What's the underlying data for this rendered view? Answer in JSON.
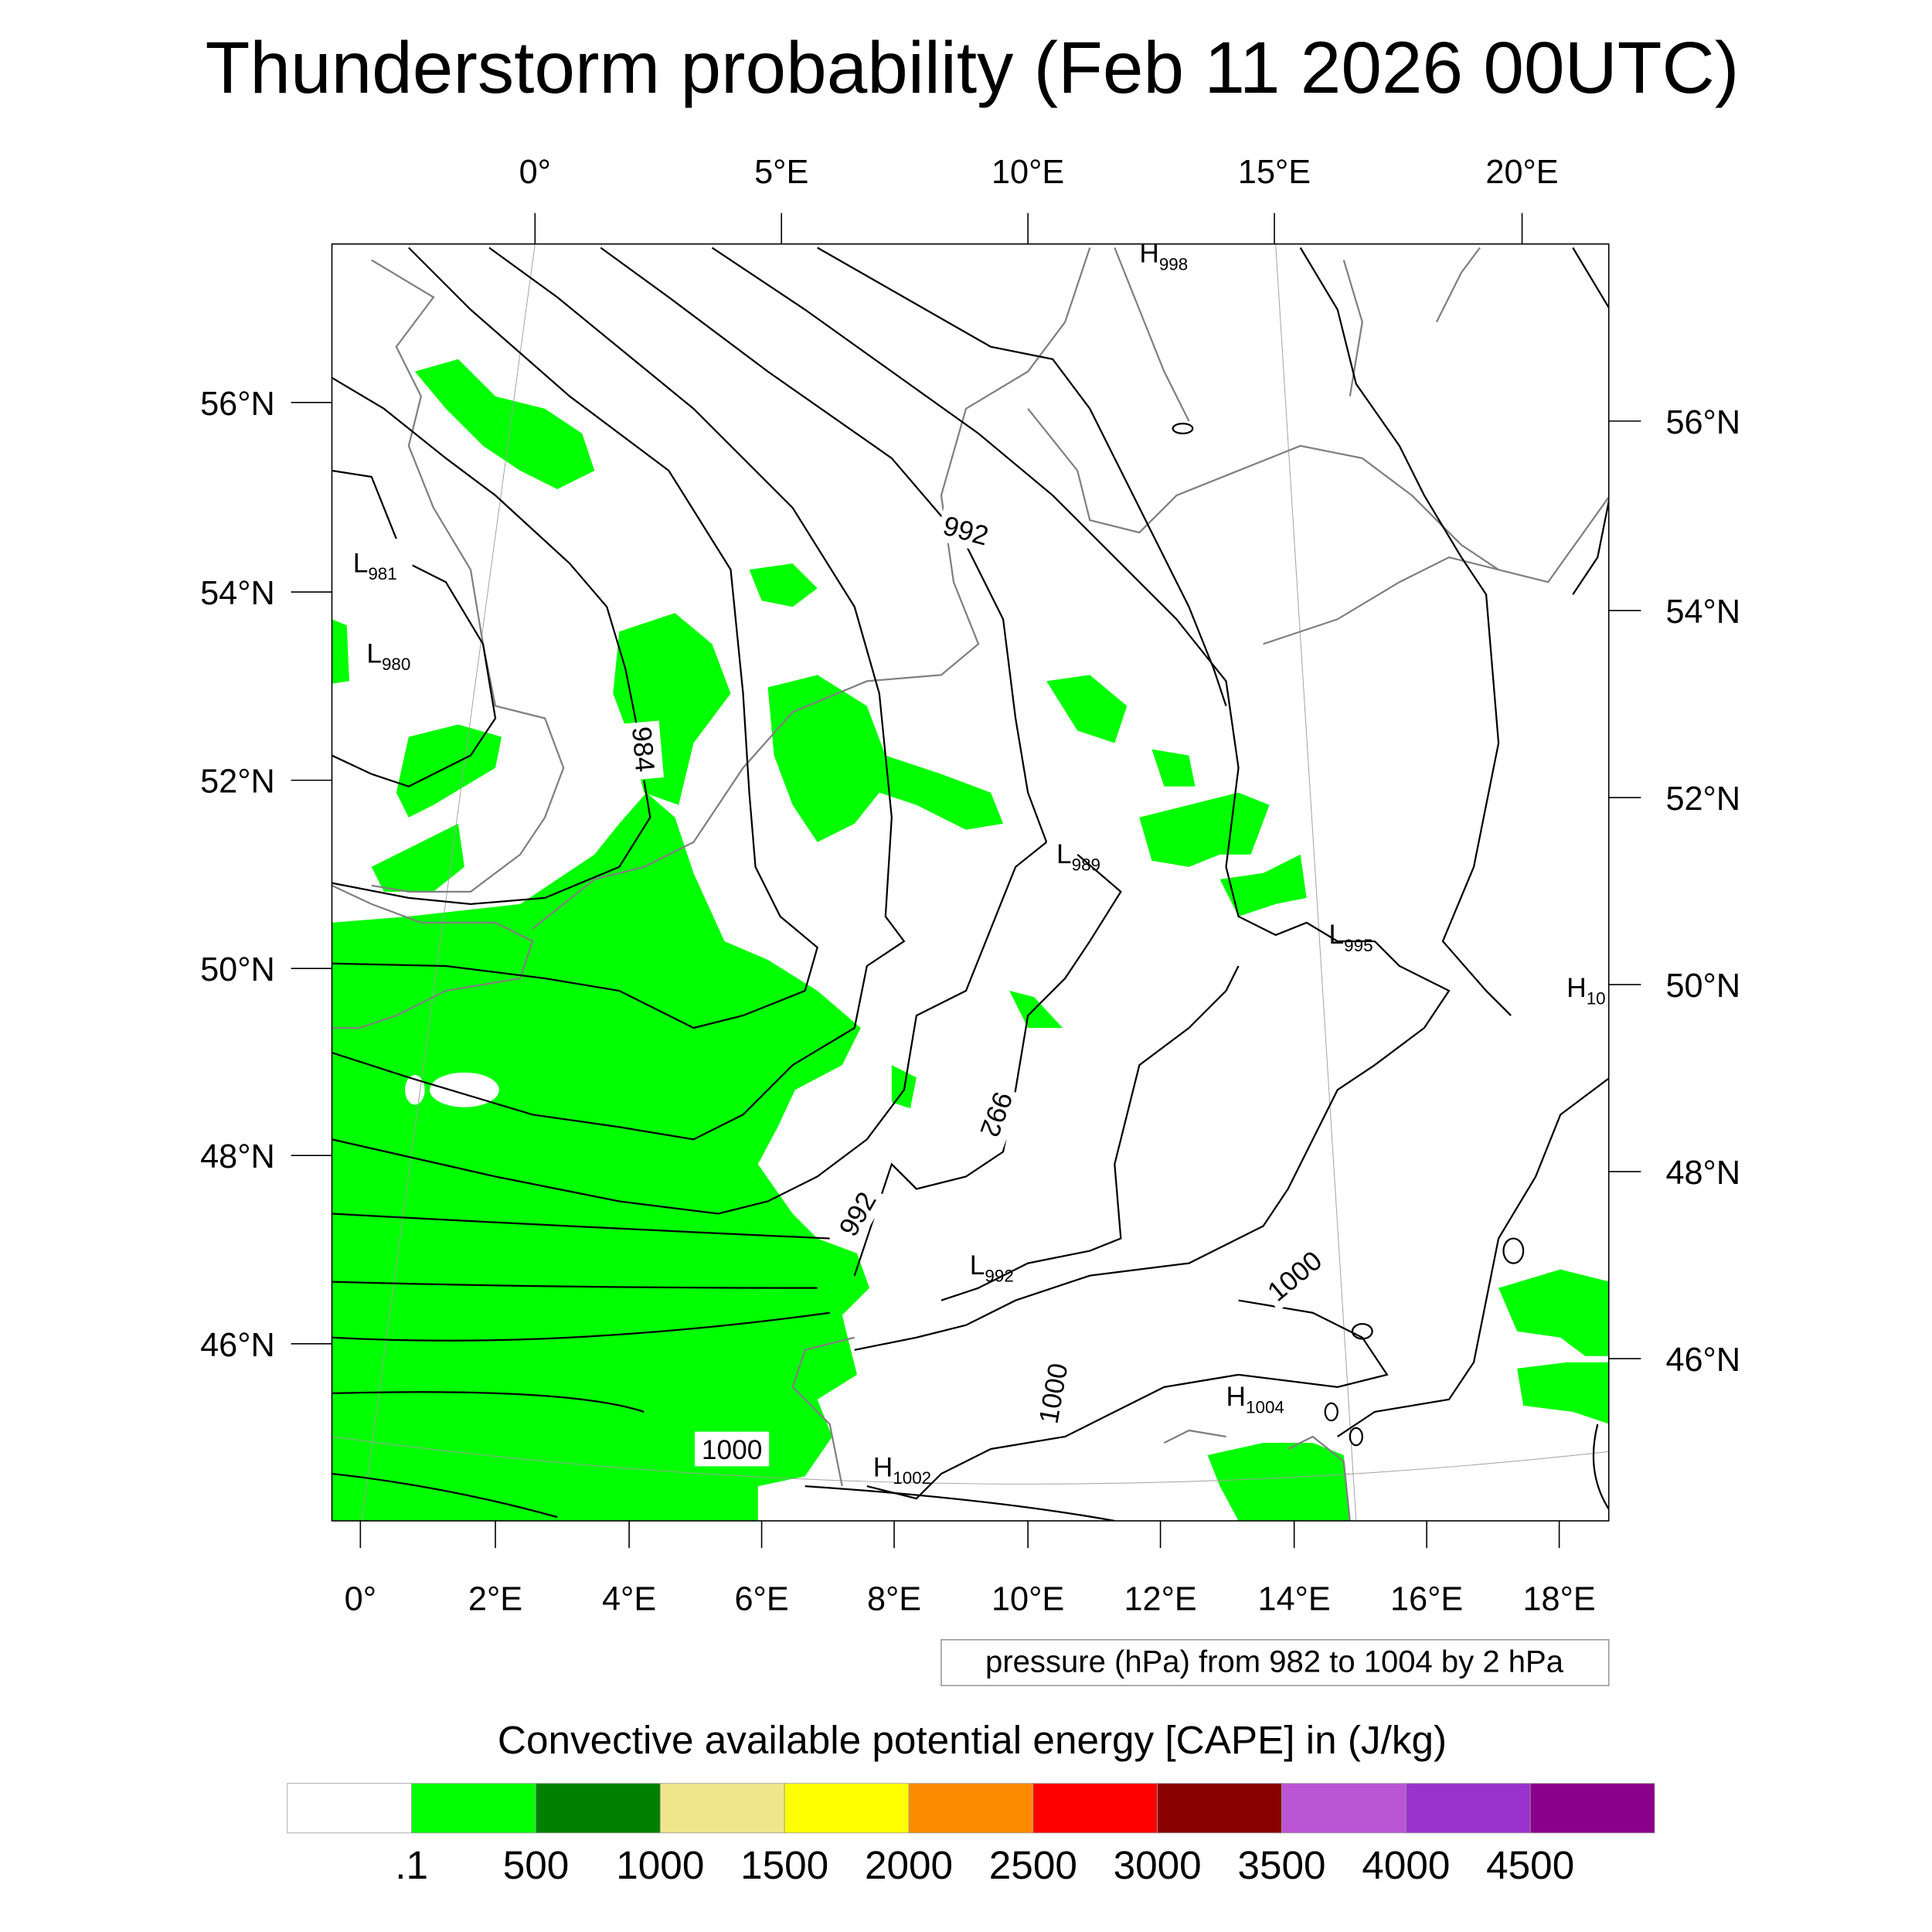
{
  "title": "Thunderstorm probability (Feb 11 2026 00UTC)",
  "top_lon_labels": [
    "0°",
    "5°E",
    "10°E",
    "15°E",
    "20°E"
  ],
  "left_lat_labels": [
    "56°N",
    "54°N",
    "52°N",
    "50°N",
    "48°N",
    "46°N"
  ],
  "right_lat_labels": [
    "56°N",
    "54°N",
    "52°N",
    "50°N",
    "48°N",
    "46°N"
  ],
  "bottom_lon_labels": [
    "0°",
    "2°E",
    "4°E",
    "6°E",
    "8°E",
    "10°E",
    "12°E",
    "14°E",
    "16°E",
    "18°E"
  ],
  "pressure_info": "pressure (hPa) from 982 to 1004 by 2 hPa",
  "colorbar": {
    "title": "Convective available potential energy [CAPE] in (J/kg)",
    "colors": [
      "#ffffff",
      "#00ff00",
      "#008000",
      "#f0e68c",
      "#ffff00",
      "#ff8c00",
      "#ff0000",
      "#8b0000",
      "#ba55d3",
      "#9932cc",
      "#8b008b"
    ],
    "labels": [
      ".1",
      "500",
      "1000",
      "1500",
      "2000",
      "2500",
      "3000",
      "3500",
      "4000",
      "4500"
    ]
  },
  "contour_labels": {
    "l981": {
      "letter": "L",
      "value": "981"
    },
    "l980": {
      "letter": "L",
      "value": "980"
    },
    "h998": {
      "letter": "H",
      "value": "998"
    },
    "l989": {
      "letter": "L",
      "value": "989"
    },
    "l995": {
      "letter": "L",
      "value": "995"
    },
    "l992": {
      "letter": "L",
      "value": "992"
    },
    "h1004": {
      "letter": "H",
      "value": "1004"
    },
    "h1002": {
      "letter": "H",
      "value": "1002"
    },
    "h10": {
      "letter": "H",
      "value": "10"
    },
    "c984": "984",
    "c992a": "992",
    "c992b": "992",
    "c992c": "992",
    "c1000a": "1000",
    "c1000b": "1000",
    "c1000c": "1000"
  },
  "chart_data": {
    "type": "heatmap",
    "title": "Thunderstorm probability (Feb 11 2026 00UTC)",
    "field": "CAPE (J/kg)",
    "levels": [
      0.1,
      500,
      1000,
      1500,
      2000,
      2500,
      3000,
      3500,
      4000,
      4500
    ],
    "lon_range": [
      -0.5,
      18.8
    ],
    "lat_range": [
      44.5,
      57.5
    ],
    "contours": "pressure (hPa) 982 to 1004 by 2",
    "observed_cape_class": ".1-500 (green) over France, North Sea, Germany, Po Valley, Hungary"
  }
}
